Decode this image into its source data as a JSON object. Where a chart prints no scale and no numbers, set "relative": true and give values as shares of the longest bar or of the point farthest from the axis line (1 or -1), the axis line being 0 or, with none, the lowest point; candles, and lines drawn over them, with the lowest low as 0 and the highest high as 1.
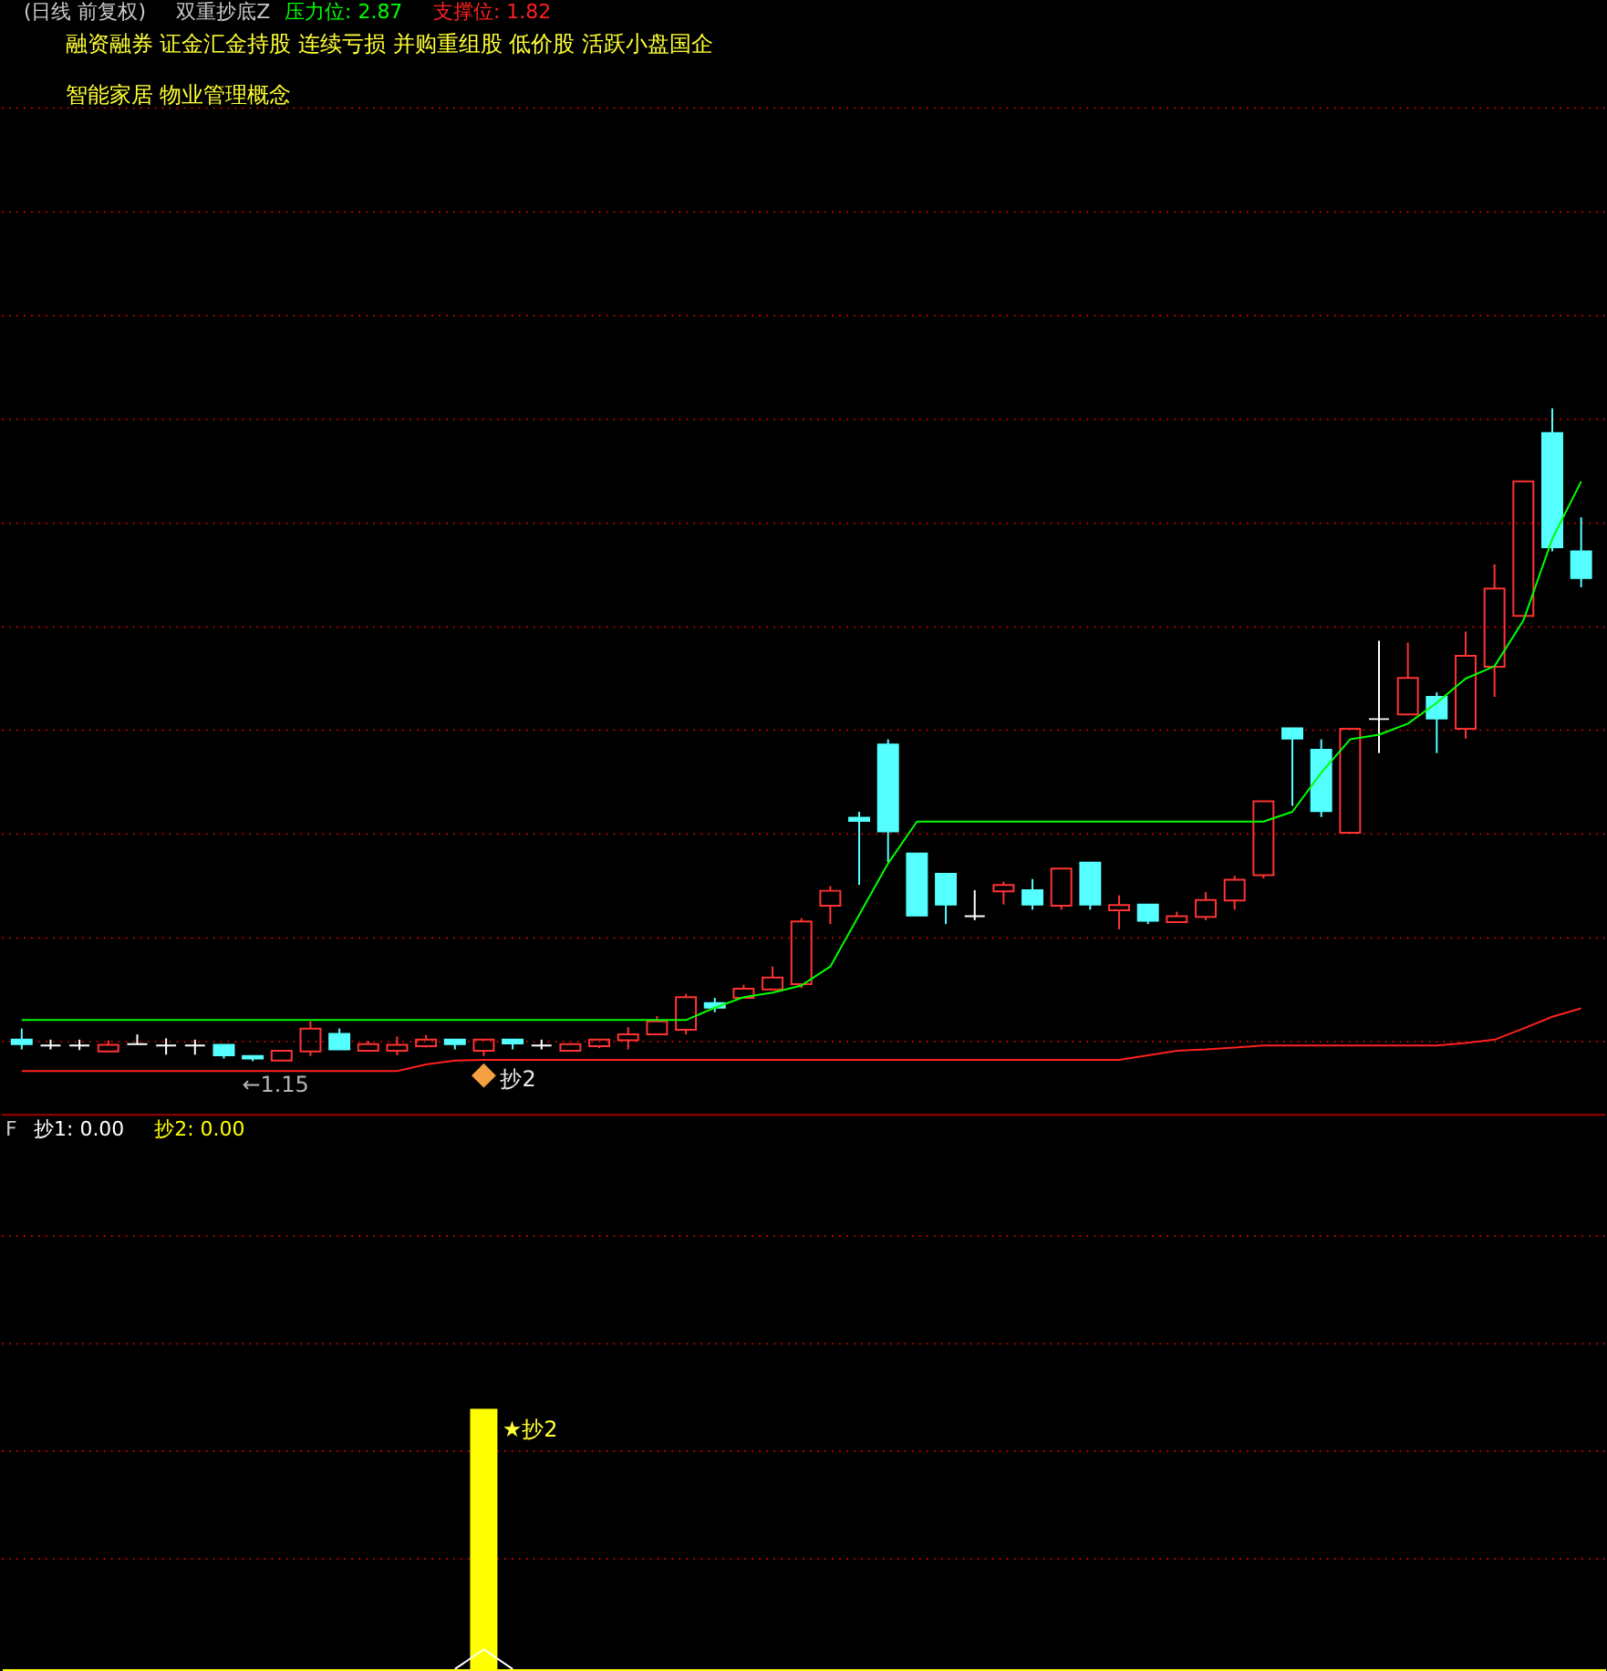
{
  "chart_data": [
    {
      "type": "candlestick",
      "title": "(日线 前复权)",
      "subtitle": "双重抄底Z",
      "relative": true,
      "legend": "top left",
      "categories": [
        null,
        null,
        null,
        null,
        null,
        null,
        null,
        null,
        null,
        null,
        null,
        null,
        null,
        null,
        null,
        null,
        null,
        null,
        null,
        null,
        null,
        null,
        null,
        null,
        null,
        null,
        null,
        null,
        null,
        null,
        null,
        null,
        null,
        null,
        null,
        null,
        null,
        null,
        null,
        null,
        null,
        null,
        null,
        null,
        null,
        null,
        null,
        null,
        null,
        null,
        null,
        null,
        null,
        null,
        null
      ],
      "ohlc": [
        [
          0.033,
          0.05,
          0.018,
          0.026
        ],
        [
          0.024,
          0.033,
          0.018,
          0.024
        ],
        [
          0.024,
          0.033,
          0.017,
          0.024
        ],
        [
          0.015,
          0.032,
          0.015,
          0.025
        ],
        [
          0.026,
          0.041,
          0.026,
          0.026
        ],
        [
          0.024,
          0.035,
          0.01,
          0.024
        ],
        [
          0.024,
          0.033,
          0.01,
          0.024
        ],
        [
          0.025,
          0.025,
          0.004,
          0.009
        ],
        [
          0.008,
          0.008,
          0,
          0.004
        ],
        [
          0.001,
          0.016,
          0.001,
          0.016
        ],
        [
          0.015,
          0.061,
          0.008,
          0.05
        ],
        [
          0.042,
          0.05,
          0.018,
          0.018
        ],
        [
          0.016,
          0.031,
          0.016,
          0.026
        ],
        [
          0.016,
          0.038,
          0.009,
          0.025
        ],
        [
          0.023,
          0.04,
          0.021,
          0.033
        ],
        [
          0.033,
          0.033,
          0.018,
          0.026
        ],
        [
          0.016,
          0.033,
          0.008,
          0.033
        ],
        [
          0.033,
          0.033,
          0.018,
          0.027
        ],
        [
          0.024,
          0.033,
          0.018,
          0.024
        ],
        [
          0.016,
          0.026,
          0.016,
          0.026
        ],
        [
          0.023,
          0.033,
          0.02,
          0.033
        ],
        [
          0.032,
          0.052,
          0.018,
          0.041
        ],
        [
          0.041,
          0.069,
          0.041,
          0.061
        ],
        [
          0.048,
          0.103,
          0.041,
          0.098
        ],
        [
          0.089,
          0.097,
          0.075,
          0.082
        ],
        [
          0.097,
          0.117,
          0.097,
          0.111
        ],
        [
          0.11,
          0.145,
          0.11,
          0.128
        ],
        [
          0.118,
          0.219,
          0.112,
          0.214
        ],
        [
          0.238,
          0.268,
          0.21,
          0.261
        ],
        [
          0.373,
          0.382,
          0.27,
          0.368
        ],
        [
          0.485,
          0.493,
          0.305,
          0.352
        ],
        [
          0.318,
          0.318,
          0.223,
          0.223
        ],
        [
          0.287,
          0.287,
          0.21,
          0.24
        ],
        [
          0.222,
          0.262,
          0.216,
          0.222
        ],
        [
          0.26,
          0.275,
          0.24,
          0.27
        ],
        [
          0.262,
          0.279,
          0.232,
          0.24
        ],
        [
          0.238,
          0.295,
          0.232,
          0.295
        ],
        [
          0.304,
          0.304,
          0.232,
          0.24
        ],
        [
          0.231,
          0.254,
          0.202,
          0.239
        ],
        [
          0.24,
          0.24,
          0.21,
          0.215
        ],
        [
          0.213,
          0.229,
          0.213,
          0.222
        ],
        [
          0.221,
          0.259,
          0.216,
          0.247
        ],
        [
          0.246,
          0.284,
          0.232,
          0.278
        ],
        [
          0.285,
          0.398,
          0.28,
          0.398
        ],
        [
          0.51,
          0.51,
          0.391,
          0.494
        ],
        [
          0.477,
          0.493,
          0.374,
          0.383
        ],
        [
          0.35,
          0.509,
          0.35,
          0.509
        ],
        [
          0.524,
          0.644,
          0.472,
          0.524
        ],
        [
          0.531,
          0.641,
          0.531,
          0.587
        ],
        [
          0.558,
          0.565,
          0.472,
          0.525
        ],
        [
          0.509,
          0.658,
          0.494,
          0.621
        ],
        [
          0.604,
          0.761,
          0.558,
          0.724
        ],
        [
          0.682,
          0.888,
          0.682,
          0.888
        ],
        [
          0.962,
          1,
          0.781,
          0.787
        ],
        [
          0.781,
          0.833,
          0.726,
          0.74
        ]
      ],
      "colors": [
        "#55ffff",
        "#ffffff",
        "#ffffff",
        "#ff3333",
        "#ffffff",
        "#ffffff",
        "#ffffff",
        "#55ffff",
        "#55ffff",
        "#ff3333",
        "#ff3333",
        "#55ffff",
        "#ff3333",
        "#ff3333",
        "#ff3333",
        "#55ffff",
        "#ff3333",
        "#55ffff",
        "#ffffff",
        "#ff3333",
        "#ff3333",
        "#ff3333",
        "#ff3333",
        "#ff3333",
        "#55ffff",
        "#ff3333",
        "#ff3333",
        "#ff3333",
        "#ff3333",
        "#55ffff",
        "#55ffff",
        "#55ffff",
        "#55ffff",
        "#ffffff",
        "#ff3333",
        "#55ffff",
        "#ff3333",
        "#55ffff",
        "#ff3333",
        "#55ffff",
        "#ff3333",
        "#ff3333",
        "#ff3333",
        "#ff3333",
        "#55ffff",
        "#55ffff",
        "#ff3333",
        "#ffffff",
        "#ff3333",
        "#55ffff",
        "#ff3333",
        "#ff3333",
        "#ff3333",
        "#55ffff",
        "#55ffff"
      ],
      "series": [
        {
          "name": "压力位: 2.87",
          "type": "line",
          "color": "#00ff00",
          "values": [
            0.063,
            0.063,
            0.063,
            0.063,
            0.063,
            0.063,
            0.063,
            0.063,
            0.063,
            0.063,
            0.063,
            0.063,
            0.063,
            0.063,
            0.063,
            0.063,
            0.063,
            0.063,
            0.063,
            0.063,
            0.063,
            0.063,
            0.063,
            0.063,
            0.082,
            0.098,
            0.105,
            0.116,
            0.145,
            0.224,
            0.303,
            0.367,
            0.367,
            0.367,
            0.367,
            0.367,
            0.367,
            0.367,
            0.367,
            0.367,
            0.367,
            0.367,
            0.367,
            0.367,
            0.382,
            0.442,
            0.493,
            0.5,
            0.517,
            0.549,
            0.586,
            0.605,
            0.675,
            0.8,
            0.888
          ]
        },
        {
          "name": "支撑位: 1.82",
          "type": "line",
          "color": "#ff2020",
          "values": [
            -0.015,
            -0.015,
            -0.015,
            -0.015,
            -0.015,
            -0.015,
            -0.015,
            -0.015,
            -0.015,
            -0.015,
            -0.015,
            -0.015,
            -0.015,
            -0.015,
            -0.005,
            0.001,
            0.002,
            0.002,
            0.002,
            0.002,
            0.002,
            0.002,
            0.002,
            0.002,
            0.002,
            0.002,
            0.002,
            0.002,
            0.002,
            0.002,
            0.002,
            0.002,
            0.002,
            0.002,
            0.002,
            0.002,
            0.002,
            0.002,
            0.002,
            0.009,
            0.016,
            0.018,
            0.021,
            0.024,
            0.024,
            0.024,
            0.024,
            0.024,
            0.024,
            0.024,
            0.028,
            0.033,
            0.05,
            0.068,
            0.081
          ]
        },
        {
          "name": "抄2",
          "type": "scatter",
          "color": "#f5a040",
          "marker": "diamond",
          "values": [
            null,
            null,
            null,
            null,
            null,
            null,
            null,
            null,
            null,
            null,
            null,
            null,
            null,
            null,
            null,
            null,
            -0.022,
            null,
            null,
            null,
            null,
            null,
            null,
            null,
            null,
            null,
            null,
            null,
            null,
            null,
            null,
            null,
            null,
            null,
            null,
            null,
            null,
            null,
            null,
            null,
            null,
            null,
            null,
            null,
            null,
            null,
            null,
            null,
            null,
            null,
            null,
            null,
            null,
            null,
            null
          ]
        }
      ],
      "ref_lines": [
        {
          "axis": "y",
          "value": 1.46,
          "color": "#b00000",
          "line_style": "dotted"
        },
        {
          "axis": "y",
          "value": 1.301,
          "color": "#b00000",
          "line_style": "dotted"
        },
        {
          "axis": "y",
          "value": 1.142,
          "color": "#b00000",
          "line_style": "dotted"
        },
        {
          "axis": "y",
          "value": 0.983,
          "color": "#b00000",
          "line_style": "dotted"
        },
        {
          "axis": "y",
          "value": 0.824,
          "color": "#b00000",
          "line_style": "dotted"
        },
        {
          "axis": "y",
          "value": 0.665,
          "color": "#b00000",
          "line_style": "dotted"
        },
        {
          "axis": "y",
          "value": 0.507,
          "color": "#b00000",
          "line_style": "dotted"
        },
        {
          "axis": "y",
          "value": 0.348,
          "color": "#b00000",
          "line_style": "dotted"
        },
        {
          "axis": "y",
          "value": 0.189,
          "color": "#b00000",
          "line_style": "dotted"
        },
        {
          "axis": "y",
          "value": 0.03,
          "color": "#b00000",
          "line_style": "dotted"
        }
      ],
      "annotations": [
        "融资融券 证金汇金持股 连续亏损 并购重组股 低价股 活跃小盘国企",
        "智能家居 物业管理概念",
        "←1.15"
      ]
    },
    {
      "type": "bar",
      "relative": true,
      "legend": "top left",
      "legend_title": "F",
      "categories": [
        null,
        null,
        null,
        null,
        null,
        null,
        null,
        null,
        null,
        null,
        null,
        null,
        null,
        null,
        null,
        null,
        null,
        null,
        null,
        null,
        null,
        null,
        null,
        null,
        null,
        null,
        null,
        null,
        null,
        null,
        null,
        null,
        null,
        null,
        null,
        null,
        null,
        null,
        null,
        null,
        null,
        null,
        null,
        null,
        null,
        null,
        null,
        null,
        null,
        null,
        null,
        null,
        null,
        null,
        null
      ],
      "series": [
        {
          "name": "抄1: 0.00",
          "type": "line",
          "color": "#ffffff",
          "values": [
            null,
            null,
            null,
            null,
            null,
            null,
            null,
            null,
            null,
            null,
            null,
            null,
            null,
            null,
            null,
            0,
            0.076,
            0,
            null,
            null,
            null,
            null,
            null,
            null,
            null,
            null,
            null,
            null,
            null,
            null,
            null,
            null,
            null,
            null,
            null,
            null,
            null,
            null,
            null,
            null,
            null,
            null,
            null,
            null,
            null,
            null,
            null,
            null,
            null,
            null,
            null,
            null,
            null,
            null,
            null
          ]
        },
        {
          "name": "抄2: 0.00",
          "color": "#ffff00",
          "values": [
            null,
            null,
            null,
            null,
            null,
            null,
            null,
            null,
            null,
            null,
            null,
            null,
            null,
            null,
            null,
            null,
            1,
            null,
            null,
            null,
            null,
            null,
            null,
            null,
            null,
            null,
            null,
            null,
            null,
            null,
            null,
            null,
            null,
            null,
            null,
            null,
            null,
            null,
            null,
            null,
            null,
            null,
            null,
            null,
            null,
            null,
            null,
            null,
            null,
            null,
            null,
            null,
            null,
            null,
            null
          ]
        }
      ],
      "ref_lines": [
        {
          "axis": "y",
          "value": 1.664,
          "color": "#b00000",
          "line_style": "dotted"
        },
        {
          "axis": "y",
          "value": 1.25,
          "color": "#b00000",
          "line_style": "dotted"
        },
        {
          "axis": "y",
          "value": 0.837,
          "color": "#b00000",
          "line_style": "dotted"
        },
        {
          "axis": "y",
          "value": 0.424,
          "color": "#b00000",
          "line_style": "dotted"
        }
      ],
      "annotations": [
        "★抄2"
      ]
    }
  ]
}
